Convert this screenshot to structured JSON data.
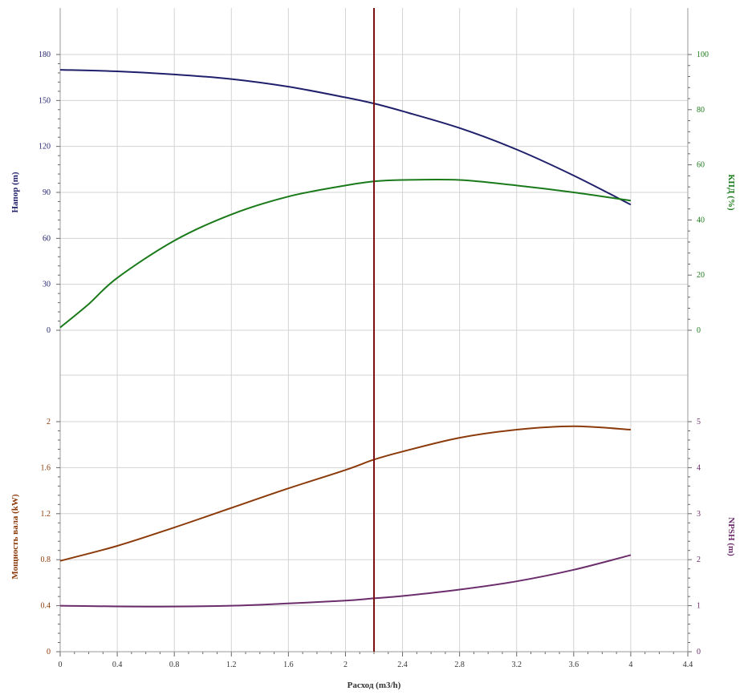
{
  "chart_data": {
    "type": "line",
    "x": {
      "label": "Расход (m3/h)",
      "range": [
        0,
        4.4
      ],
      "ticks": [
        "0",
        "0.4",
        "0.8",
        "1.2",
        "1.6",
        "2",
        "2.4",
        "2.8",
        "3.2",
        "3.6",
        "4",
        "4.4"
      ],
      "grid": true
    },
    "operating_point": {
      "x": 2.2,
      "color": "#7b1010"
    },
    "panels": [
      {
        "id": "top",
        "left_axis": {
          "label": "Напор (m)",
          "color": "#1f1f6b",
          "range": [
            0,
            180
          ],
          "ticks": [
            "0",
            "30",
            "60",
            "90",
            "120",
            "150",
            "180"
          ]
        },
        "right_axis": {
          "label": "КПД (%)",
          "color": "#1a7a1a",
          "range": [
            0,
            100
          ],
          "ticks": [
            "0",
            "20",
            "40",
            "60",
            "80",
            "100"
          ]
        },
        "series": [
          {
            "name": "Напор (m)",
            "axis": "left",
            "color": "#1f1f6b",
            "points": [
              [
                0,
                170
              ],
              [
                0.4,
                169
              ],
              [
                0.8,
                167
              ],
              [
                1.2,
                164
              ],
              [
                1.6,
                159
              ],
              [
                2.0,
                152
              ],
              [
                2.2,
                148
              ],
              [
                2.4,
                143
              ],
              [
                2.8,
                132
              ],
              [
                3.2,
                118
              ],
              [
                3.6,
                101
              ],
              [
                4.0,
                82
              ]
            ]
          },
          {
            "name": "КПД (%)",
            "axis": "right",
            "color": "#1a7a1a",
            "points": [
              [
                0,
                1
              ],
              [
                0.2,
                9.5
              ],
              [
                0.4,
                19
              ],
              [
                0.8,
                32.5
              ],
              [
                1.2,
                42
              ],
              [
                1.6,
                48.5
              ],
              [
                2.0,
                52.5
              ],
              [
                2.2,
                54
              ],
              [
                2.4,
                54.5
              ],
              [
                2.8,
                54.5
              ],
              [
                3.2,
                52.5
              ],
              [
                3.6,
                50
              ],
              [
                4.0,
                47
              ]
            ]
          }
        ]
      },
      {
        "id": "bottom",
        "left_axis": {
          "label": "Мощность вала (kW)",
          "color": "#8b3a0a",
          "range": [
            0,
            2
          ],
          "ticks": [
            "0",
            "0.4",
            "0.8",
            "1.2",
            "1.6",
            "2"
          ]
        },
        "right_axis": {
          "label": "NPSH (m)",
          "color": "#6b2d6b",
          "range": [
            0,
            5
          ],
          "ticks": [
            "0",
            "1",
            "2",
            "3",
            "4",
            "5"
          ]
        },
        "series": [
          {
            "name": "Мощность вала (kW)",
            "axis": "left",
            "color": "#8b3a0a",
            "points": [
              [
                0,
                0.79
              ],
              [
                0.4,
                0.92
              ],
              [
                0.8,
                1.08
              ],
              [
                1.2,
                1.25
              ],
              [
                1.6,
                1.42
              ],
              [
                2.0,
                1.58
              ],
              [
                2.2,
                1.67
              ],
              [
                2.4,
                1.74
              ],
              [
                2.8,
                1.86
              ],
              [
                3.2,
                1.93
              ],
              [
                3.6,
                1.96
              ],
              [
                4.0,
                1.93
              ]
            ]
          },
          {
            "name": "NPSH (m)",
            "axis": "right",
            "color": "#6b2d6b",
            "points": [
              [
                0,
                1.0
              ],
              [
                0.6,
                0.98
              ],
              [
                1.2,
                1.0
              ],
              [
                1.6,
                1.05
              ],
              [
                2.0,
                1.11
              ],
              [
                2.2,
                1.16
              ],
              [
                2.4,
                1.21
              ],
              [
                2.8,
                1.35
              ],
              [
                3.2,
                1.53
              ],
              [
                3.6,
                1.78
              ],
              [
                4.0,
                2.1
              ]
            ]
          }
        ]
      }
    ]
  }
}
